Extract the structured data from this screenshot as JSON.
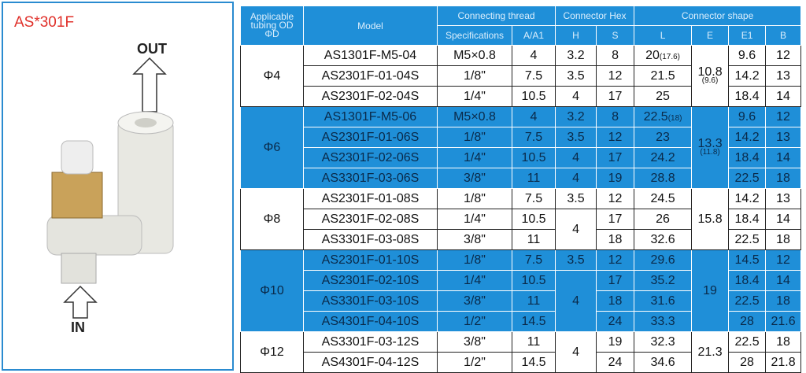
{
  "product": {
    "title": "AS*301F",
    "out_label": "OUT",
    "in_label": "IN"
  },
  "table": {
    "header": {
      "od": [
        "Applicable",
        "tubing OD",
        "ΦD"
      ],
      "model": "Model",
      "thread": "Connecting thread",
      "hex": "Connector Hex",
      "shape": "Connector shape",
      "sub": [
        "Specifications",
        "A/A1",
        "H",
        "S",
        "L",
        "E",
        "E1",
        "B"
      ]
    },
    "groups": [
      {
        "od": "Φ4",
        "shape": 10.8,
        "shape_note": "(9.6)",
        "rows": [
          {
            "model": "AS1301F-M5-04",
            "spec": "M5×0.8",
            "a": 4,
            "h": 3.2,
            "s": 8,
            "l": 20,
            "l_note": "(17.6)",
            "e1": 9.6,
            "b": 12
          },
          {
            "model": "AS2301F-01-04S",
            "spec": "1/8\"",
            "a": 7.5,
            "h": 3.5,
            "s": 12,
            "l": 21.5,
            "e1": 14.2,
            "b": 13
          },
          {
            "model": "AS2301F-02-04S",
            "spec": "1/4\"",
            "a": 10.5,
            "h": 4,
            "s": 17,
            "l": 25,
            "e1": 18.4,
            "b": 14
          }
        ]
      },
      {
        "od": "Φ6",
        "shape": 13.3,
        "shape_note": "(11.8)",
        "rows": [
          {
            "model": "AS1301F-M5-06",
            "spec": "M5×0.8",
            "a": 4,
            "h": 3.2,
            "s": 8,
            "l": 22.5,
            "l_note": "(18)",
            "e1": 9.6,
            "b": 12
          },
          {
            "model": "AS2301F-01-06S",
            "spec": "1/8\"",
            "a": 7.5,
            "h": 3.5,
            "s": 12,
            "l": 23,
            "e1": 14.2,
            "b": 13
          },
          {
            "model": "AS2301F-02-06S",
            "spec": "1/4\"",
            "a": 10.5,
            "h": 4,
            "s": 17,
            "l": 24.2,
            "e1": 18.4,
            "b": 14
          },
          {
            "model": "AS3301F-03-06S",
            "spec": "3/8\"",
            "a": 11,
            "h": 4,
            "s": 19,
            "l": 28.8,
            "e1": 22.5,
            "b": 18
          }
        ]
      },
      {
        "od": "Φ8",
        "shape": 15.8,
        "rows": [
          {
            "model": "AS2301F-01-08S",
            "spec": "1/8\"",
            "a": 7.5,
            "h": 3.5,
            "s": 12,
            "l": 24.5,
            "e1": 14.2,
            "b": 13
          },
          {
            "model": "AS2301F-02-08S",
            "spec": "1/4\"",
            "a": 10.5,
            "h": 4,
            "s": 17,
            "l": 26,
            "e1": 18.4,
            "b": 14
          },
          {
            "model": "AS3301F-03-08S",
            "spec": "3/8\"",
            "a": 11,
            "h": null,
            "s": 18,
            "l": 32.6,
            "e1": 22.5,
            "b": 18
          }
        ]
      },
      {
        "od": "Φ10",
        "shape": 19,
        "rows": [
          {
            "model": "AS2301F-01-10S",
            "spec": "1/8\"",
            "a": 7.5,
            "h": 3.5,
            "s": 12,
            "l": 29.6,
            "e1": 14.5,
            "b": 12
          },
          {
            "model": "AS2301F-02-10S",
            "spec": "1/4\"",
            "a": 10.5,
            "h": 4,
            "s": 17,
            "l": 35.2,
            "e1": 18.4,
            "b": 14
          },
          {
            "model": "AS3301F-03-10S",
            "spec": "3/8\"",
            "a": 11,
            "h": null,
            "s": 18,
            "l": 31.6,
            "e1": 22.5,
            "b": 18
          },
          {
            "model": "AS4301F-04-10S",
            "spec": "1/2\"",
            "a": 14.5,
            "h": null,
            "s": 24,
            "l": 33.3,
            "e1": 28,
            "b": 21.6
          }
        ]
      },
      {
        "od": "Φ12",
        "shape": 21.3,
        "rows": [
          {
            "model": "AS3301F-03-12S",
            "spec": "3/8\"",
            "a": 11,
            "h": 4,
            "s": 19,
            "l": 32.3,
            "e1": 22.5,
            "b": 18
          },
          {
            "model": "AS4301F-04-12S",
            "spec": "1/2\"",
            "a": 14.5,
            "h": null,
            "s": 24,
            "l": 34.6,
            "e1": 28,
            "b": 21.8
          }
        ]
      }
    ]
  }
}
